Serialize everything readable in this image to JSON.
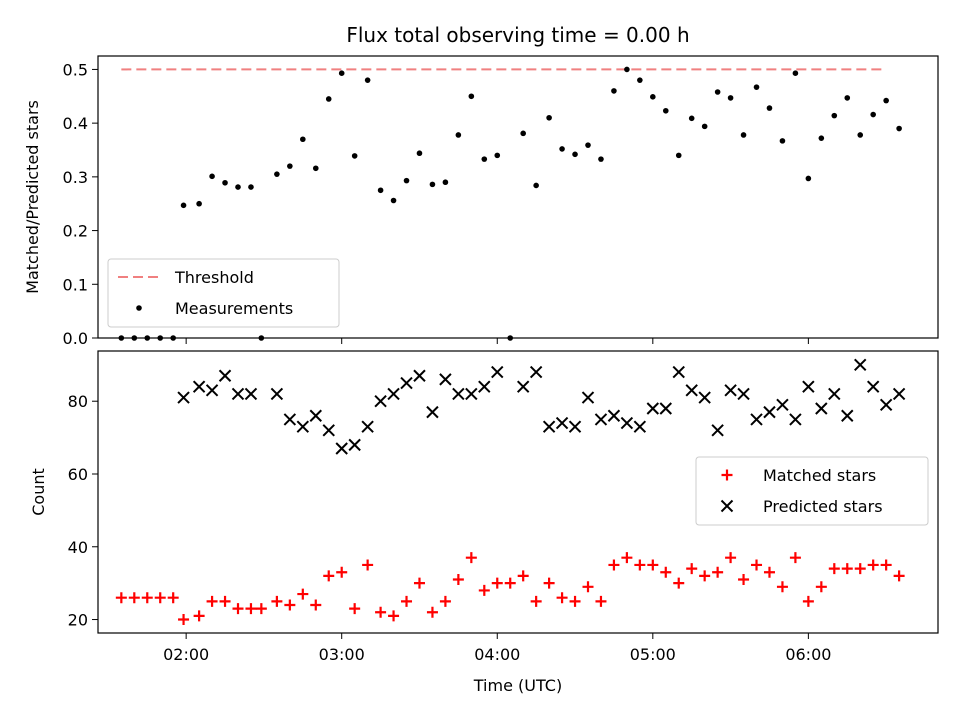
{
  "chart_data": {
    "title": "Flux total observing time = 0.00 h",
    "xlabel": "Time (UTC)",
    "x_axis": {
      "type": "time",
      "range": [
        "01:26",
        "06:50"
      ],
      "ticks": [
        "02:00",
        "03:00",
        "04:00",
        "05:00",
        "06:00"
      ]
    },
    "panels": [
      {
        "name": "ratio",
        "type": "scatter",
        "ylabel": "Matched/Predicted stars",
        "ylim": [
          0,
          0.525
        ],
        "yticks": [
          "0.0",
          "0.1",
          "0.2",
          "0.3",
          "0.4",
          "0.5"
        ],
        "legend": {
          "placement": "lower-left",
          "entries": [
            "Threshold",
            "Measurements"
          ]
        },
        "series": [
          {
            "name": "Threshold",
            "style": "dashed-line",
            "color": "#f08080",
            "x": [
              "01:35",
              "06:30"
            ],
            "y": [
              0.5,
              0.5
            ]
          },
          {
            "name": "Measurements",
            "style": "dot",
            "color": "#000000",
            "points": [
              [
                "01:35",
                0.0
              ],
              [
                "01:40",
                0.0
              ],
              [
                "01:45",
                0.0
              ],
              [
                "01:50",
                0.0
              ],
              [
                "01:55",
                0.0
              ],
              [
                "01:59",
                0.247
              ],
              [
                "02:05",
                0.25
              ],
              [
                "02:10",
                0.301
              ],
              [
                "02:15",
                0.289
              ],
              [
                "02:20",
                0.281
              ],
              [
                "02:25",
                0.281
              ],
              [
                "02:29",
                0.0
              ],
              [
                "02:35",
                0.305
              ],
              [
                "02:40",
                0.32
              ],
              [
                "02:45",
                0.37
              ],
              [
                "02:50",
                0.316
              ],
              [
                "02:55",
                0.445
              ],
              [
                "03:00",
                0.493
              ],
              [
                "03:05",
                0.339
              ],
              [
                "03:10",
                0.48
              ],
              [
                "03:15",
                0.275
              ],
              [
                "03:20",
                0.256
              ],
              [
                "03:25",
                0.293
              ],
              [
                "03:30",
                0.344
              ],
              [
                "03:35",
                0.286
              ],
              [
                "03:40",
                0.29
              ],
              [
                "03:45",
                0.378
              ],
              [
                "03:50",
                0.45
              ],
              [
                "03:55",
                0.333
              ],
              [
                "04:00",
                0.34
              ],
              [
                "04:05",
                0.0
              ],
              [
                "04:10",
                0.381
              ],
              [
                "04:15",
                0.284
              ],
              [
                "04:20",
                0.41
              ],
              [
                "04:25",
                0.352
              ],
              [
                "04:30",
                0.342
              ],
              [
                "04:35",
                0.359
              ],
              [
                "04:40",
                0.333
              ],
              [
                "04:45",
                0.46
              ],
              [
                "04:50",
                0.5
              ],
              [
                "04:55",
                0.48
              ],
              [
                "05:00",
                0.449
              ],
              [
                "05:05",
                0.423
              ],
              [
                "05:10",
                0.34
              ],
              [
                "05:15",
                0.409
              ],
              [
                "05:20",
                0.394
              ],
              [
                "05:25",
                0.458
              ],
              [
                "05:30",
                0.447
              ],
              [
                "05:35",
                0.378
              ],
              [
                "05:40",
                0.467
              ],
              [
                "05:45",
                0.428
              ],
              [
                "05:50",
                0.367
              ],
              [
                "05:55",
                0.493
              ],
              [
                "06:00",
                0.297
              ],
              [
                "06:05",
                0.372
              ],
              [
                "06:10",
                0.414
              ],
              [
                "06:15",
                0.447
              ],
              [
                "06:20",
                0.378
              ],
              [
                "06:25",
                0.416
              ],
              [
                "06:30",
                0.442
              ],
              [
                "06:35",
                0.39
              ]
            ]
          }
        ]
      },
      {
        "name": "counts",
        "type": "scatter",
        "ylabel": "Count",
        "ylim": [
          16.3,
          93.8
        ],
        "yticks": [
          "20",
          "40",
          "60",
          "80"
        ],
        "legend": {
          "placement": "center-right",
          "entries": [
            "Matched stars",
            "Predicted stars"
          ]
        },
        "series": [
          {
            "name": "Matched stars",
            "marker": "plus",
            "color": "#ff0000",
            "points": [
              [
                "01:35",
                26
              ],
              [
                "01:40",
                26
              ],
              [
                "01:45",
                26
              ],
              [
                "01:50",
                26
              ],
              [
                "01:55",
                26
              ],
              [
                "01:59",
                20
              ],
              [
                "02:05",
                21
              ],
              [
                "02:10",
                25
              ],
              [
                "02:15",
                25
              ],
              [
                "02:20",
                23
              ],
              [
                "02:25",
                23
              ],
              [
                "02:29",
                23
              ],
              [
                "02:35",
                25
              ],
              [
                "02:40",
                24
              ],
              [
                "02:45",
                27
              ],
              [
                "02:50",
                24
              ],
              [
                "02:55",
                32
              ],
              [
                "03:00",
                33
              ],
              [
                "03:05",
                23
              ],
              [
                "03:10",
                35
              ],
              [
                "03:15",
                22
              ],
              [
                "03:20",
                21
              ],
              [
                "03:25",
                25
              ],
              [
                "03:30",
                30
              ],
              [
                "03:35",
                22
              ],
              [
                "03:40",
                25
              ],
              [
                "03:45",
                31
              ],
              [
                "03:50",
                37
              ],
              [
                "03:55",
                28
              ],
              [
                "04:00",
                30
              ],
              [
                "04:05",
                30
              ],
              [
                "04:10",
                32
              ],
              [
                "04:15",
                25
              ],
              [
                "04:20",
                30
              ],
              [
                "04:25",
                26
              ],
              [
                "04:30",
                25
              ],
              [
                "04:35",
                29
              ],
              [
                "04:40",
                25
              ],
              [
                "04:45",
                35
              ],
              [
                "04:50",
                37
              ],
              [
                "04:55",
                35
              ],
              [
                "05:00",
                35
              ],
              [
                "05:05",
                33
              ],
              [
                "05:10",
                30
              ],
              [
                "05:15",
                34
              ],
              [
                "05:20",
                32
              ],
              [
                "05:25",
                33
              ],
              [
                "05:30",
                37
              ],
              [
                "05:35",
                31
              ],
              [
                "05:40",
                35
              ],
              [
                "05:45",
                33
              ],
              [
                "05:50",
                29
              ],
              [
                "05:55",
                37
              ],
              [
                "06:00",
                25
              ],
              [
                "06:05",
                29
              ],
              [
                "06:10",
                34
              ],
              [
                "06:15",
                34
              ],
              [
                "06:20",
                34
              ],
              [
                "06:25",
                35
              ],
              [
                "06:30",
                35
              ],
              [
                "06:35",
                32
              ]
            ]
          },
          {
            "name": "Predicted stars",
            "marker": "x",
            "color": "#000000",
            "points": [
              [
                "01:59",
                81
              ],
              [
                "02:05",
                84
              ],
              [
                "02:10",
                83
              ],
              [
                "02:15",
                87
              ],
              [
                "02:20",
                82
              ],
              [
                "02:25",
                82
              ],
              [
                "02:35",
                82
              ],
              [
                "02:40",
                75
              ],
              [
                "02:45",
                73
              ],
              [
                "02:50",
                76
              ],
              [
                "02:55",
                72
              ],
              [
                "03:00",
                67
              ],
              [
                "03:05",
                68
              ],
              [
                "03:10",
                73
              ],
              [
                "03:15",
                80
              ],
              [
                "03:20",
                82
              ],
              [
                "03:25",
                85
              ],
              [
                "03:30",
                87
              ],
              [
                "03:35",
                77
              ],
              [
                "03:40",
                86
              ],
              [
                "03:45",
                82
              ],
              [
                "03:50",
                82
              ],
              [
                "03:55",
                84
              ],
              [
                "04:00",
                88
              ],
              [
                "04:10",
                84
              ],
              [
                "04:15",
                88
              ],
              [
                "04:20",
                73
              ],
              [
                "04:25",
                74
              ],
              [
                "04:30",
                73
              ],
              [
                "04:35",
                81
              ],
              [
                "04:40",
                75
              ],
              [
                "04:45",
                76
              ],
              [
                "04:50",
                74
              ],
              [
                "04:55",
                73
              ],
              [
                "05:00",
                78
              ],
              [
                "05:05",
                78
              ],
              [
                "05:10",
                88
              ],
              [
                "05:15",
                83
              ],
              [
                "05:20",
                81
              ],
              [
                "05:25",
                72
              ],
              [
                "05:30",
                83
              ],
              [
                "05:35",
                82
              ],
              [
                "05:40",
                75
              ],
              [
                "05:45",
                77
              ],
              [
                "05:50",
                79
              ],
              [
                "05:55",
                75
              ],
              [
                "06:00",
                84
              ],
              [
                "06:05",
                78
              ],
              [
                "06:10",
                82
              ],
              [
                "06:15",
                76
              ],
              [
                "06:20",
                90
              ],
              [
                "06:25",
                84
              ],
              [
                "06:30",
                79
              ],
              [
                "06:35",
                82
              ]
            ]
          }
        ]
      }
    ]
  }
}
